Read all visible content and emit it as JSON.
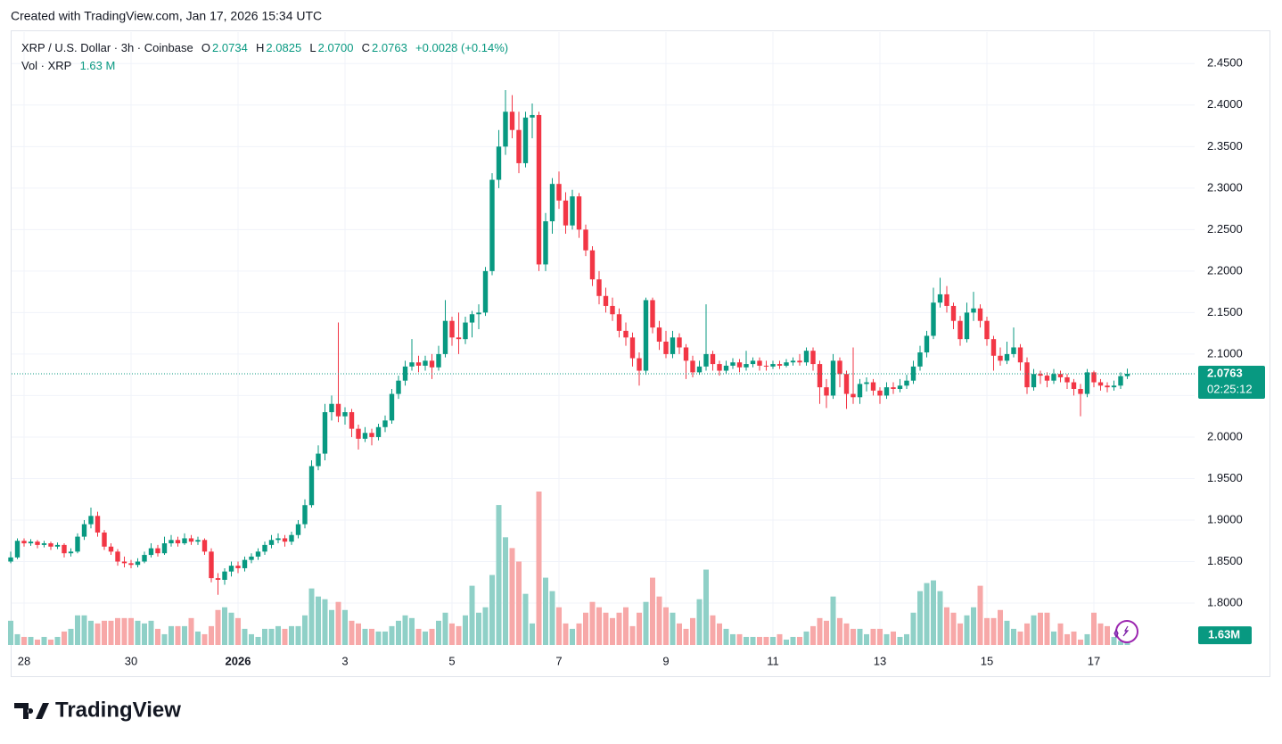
{
  "chart_data": {
    "type": "candlestick",
    "watermark": "Created with TradingView.com, Jan 17, 2026 15:34 UTC",
    "title": "XRP / U.S. Dollar · 3h · Coinbase",
    "legend": {
      "open_key": "O",
      "open": "2.0734",
      "high_key": "H",
      "high": "2.0825",
      "low_key": "L",
      "low": "2.0700",
      "close_key": "C",
      "close": "2.0763",
      "change": "+0.0028 (+0.14%)",
      "volume_key": "Vol · XRP",
      "volume": "1.63 M"
    },
    "price_tag": "2.0763",
    "countdown": "02:25:12",
    "volume_tag": "1.63M",
    "brand": "TradingView",
    "up_color": "#089981",
    "down_color": "#f23645",
    "volume_up_color": "#8fd0c7",
    "volume_down_color": "#f7a8a8",
    "grid": true,
    "ylim": [
      1.7495,
      2.489
    ],
    "yticks": [
      {
        "value": 1.8,
        "label": "1.8000"
      },
      {
        "value": 1.85,
        "label": "1.8500"
      },
      {
        "value": 1.9,
        "label": "1.9000"
      },
      {
        "value": 1.95,
        "label": "1.9500"
      },
      {
        "value": 2.0,
        "label": "2.0000"
      },
      {
        "value": 2.05,
        "label": "2.0500"
      },
      {
        "value": 2.1,
        "label": "2.1000"
      },
      {
        "value": 2.15,
        "label": "2.1500"
      },
      {
        "value": 2.2,
        "label": "2.2000"
      },
      {
        "value": 2.25,
        "label": "2.2500"
      },
      {
        "value": 2.3,
        "label": "2.3000"
      },
      {
        "value": 2.35,
        "label": "2.3500"
      },
      {
        "value": 2.4,
        "label": "2.4000"
      },
      {
        "value": 2.45,
        "label": "2.4500"
      }
    ],
    "categories": [
      null,
      null,
      "28",
      null,
      null,
      null,
      null,
      null,
      null,
      null,
      null,
      null,
      null,
      null,
      null,
      null,
      null,
      null,
      "30",
      null,
      null,
      null,
      null,
      null,
      null,
      null,
      null,
      null,
      null,
      null,
      null,
      null,
      null,
      null,
      "2026",
      null,
      null,
      null,
      null,
      null,
      null,
      null,
      null,
      null,
      null,
      null,
      null,
      null,
      null,
      null,
      "3",
      null,
      null,
      null,
      null,
      null,
      null,
      null,
      null,
      null,
      null,
      null,
      null,
      null,
      null,
      null,
      "5",
      null,
      null,
      null,
      null,
      null,
      null,
      null,
      null,
      null,
      null,
      null,
      null,
      null,
      null,
      null,
      "7",
      null,
      null,
      null,
      null,
      null,
      null,
      null,
      null,
      null,
      null,
      null,
      null,
      null,
      null,
      null,
      "9",
      null,
      null,
      null,
      null,
      null,
      null,
      null,
      null,
      null,
      null,
      null,
      null,
      null,
      null,
      null,
      "11",
      null,
      null,
      null,
      null,
      null,
      null,
      null,
      null,
      null,
      null,
      null,
      null,
      null,
      null,
      null,
      "13",
      null,
      null,
      null,
      null,
      null,
      null,
      null,
      null,
      null,
      null,
      null,
      null,
      null,
      null,
      null,
      "15",
      null,
      null,
      null,
      null,
      null,
      null,
      null,
      null,
      null,
      null,
      null,
      null,
      null,
      null,
      null,
      "17",
      null,
      null,
      null,
      null,
      null
    ],
    "ohlc": [
      [
        1.85,
        1.862,
        1.848,
        1.855
      ],
      [
        1.855,
        1.878,
        1.853,
        1.875
      ],
      [
        1.875,
        1.878,
        1.868,
        1.872
      ],
      [
        1.872,
        1.877,
        1.869,
        1.874
      ],
      [
        1.874,
        1.876,
        1.866,
        1.87
      ],
      [
        1.87,
        1.875,
        1.867,
        1.872
      ],
      [
        1.872,
        1.874,
        1.864,
        1.868
      ],
      [
        1.868,
        1.873,
        1.865,
        1.87
      ],
      [
        1.87,
        1.872,
        1.855,
        1.86
      ],
      [
        1.86,
        1.866,
        1.856,
        1.862
      ],
      [
        1.862,
        1.884,
        1.86,
        1.88
      ],
      [
        1.88,
        1.9,
        1.876,
        1.895
      ],
      [
        1.895,
        1.915,
        1.89,
        1.905
      ],
      [
        1.905,
        1.91,
        1.88,
        1.885
      ],
      [
        1.885,
        1.888,
        1.864,
        1.868
      ],
      [
        1.868,
        1.872,
        1.858,
        1.862
      ],
      [
        1.862,
        1.865,
        1.845,
        1.85
      ],
      [
        1.85,
        1.856,
        1.843,
        1.848
      ],
      [
        1.848,
        1.852,
        1.842,
        1.846
      ],
      [
        1.846,
        1.854,
        1.843,
        1.85
      ],
      [
        1.85,
        1.862,
        1.848,
        1.858
      ],
      [
        1.858,
        1.872,
        1.855,
        1.866
      ],
      [
        1.866,
        1.87,
        1.856,
        1.86
      ],
      [
        1.86,
        1.88,
        1.858,
        1.872
      ],
      [
        1.872,
        1.882,
        1.868,
        1.876
      ],
      [
        1.876,
        1.88,
        1.868,
        1.872
      ],
      [
        1.872,
        1.884,
        1.87,
        1.878
      ],
      [
        1.878,
        1.882,
        1.87,
        1.874
      ],
      [
        1.874,
        1.88,
        1.87,
        1.876
      ],
      [
        1.876,
        1.878,
        1.858,
        1.862
      ],
      [
        1.862,
        1.866,
        1.825,
        1.83
      ],
      [
        1.83,
        1.836,
        1.81,
        1.828
      ],
      [
        1.828,
        1.842,
        1.822,
        1.838
      ],
      [
        1.838,
        1.85,
        1.832,
        1.845
      ],
      [
        1.845,
        1.85,
        1.836,
        1.842
      ],
      [
        1.842,
        1.856,
        1.838,
        1.852
      ],
      [
        1.852,
        1.86,
        1.848,
        1.856
      ],
      [
        1.856,
        1.866,
        1.852,
        1.862
      ],
      [
        1.862,
        1.874,
        1.858,
        1.87
      ],
      [
        1.87,
        1.882,
        1.866,
        1.876
      ],
      [
        1.876,
        1.884,
        1.872,
        1.878
      ],
      [
        1.878,
        1.882,
        1.868,
        1.874
      ],
      [
        1.874,
        1.886,
        1.87,
        1.882
      ],
      [
        1.882,
        1.9,
        1.878,
        1.895
      ],
      [
        1.895,
        1.925,
        1.89,
        1.918
      ],
      [
        1.918,
        1.972,
        1.915,
        1.965
      ],
      [
        1.965,
        1.99,
        1.96,
        1.98
      ],
      [
        1.98,
        2.04,
        1.972,
        2.03
      ],
      [
        2.03,
        2.05,
        2.02,
        2.04
      ],
      [
        2.04,
        2.138,
        2.018,
        2.025
      ],
      [
        2.025,
        2.036,
        2.015,
        2.03
      ],
      [
        2.03,
        2.034,
        2.0,
        2.01
      ],
      [
        2.01,
        2.015,
        1.985,
        1.998
      ],
      [
        1.998,
        2.012,
        1.994,
        2.005
      ],
      [
        2.005,
        2.01,
        1.99,
        2.0
      ],
      [
        2.0,
        2.016,
        1.996,
        2.012
      ],
      [
        2.012,
        2.026,
        2.006,
        2.02
      ],
      [
        2.02,
        2.058,
        2.016,
        2.052
      ],
      [
        2.052,
        2.074,
        2.046,
        2.068
      ],
      [
        2.068,
        2.092,
        2.062,
        2.085
      ],
      [
        2.085,
        2.118,
        2.08,
        2.09
      ],
      [
        2.09,
        2.098,
        2.078,
        2.086
      ],
      [
        2.086,
        2.098,
        2.08,
        2.092
      ],
      [
        2.092,
        2.1,
        2.07,
        2.084
      ],
      [
        2.084,
        2.11,
        2.08,
        2.1
      ],
      [
        2.1,
        2.165,
        2.096,
        2.14
      ],
      [
        2.14,
        2.145,
        2.11,
        2.12
      ],
      [
        2.12,
        2.15,
        2.1,
        2.118
      ],
      [
        2.118,
        2.145,
        2.112,
        2.138
      ],
      [
        2.138,
        2.152,
        2.12,
        2.148
      ],
      [
        2.148,
        2.16,
        2.13,
        2.15
      ],
      [
        2.15,
        2.205,
        2.146,
        2.2
      ],
      [
        2.2,
        2.318,
        2.195,
        2.31
      ],
      [
        2.31,
        2.37,
        2.3,
        2.35
      ],
      [
        2.35,
        2.418,
        2.34,
        2.392
      ],
      [
        2.392,
        2.412,
        2.36,
        2.37
      ],
      [
        2.37,
        2.392,
        2.318,
        2.33
      ],
      [
        2.33,
        2.392,
        2.325,
        2.385
      ],
      [
        2.385,
        2.402,
        2.36,
        2.388
      ],
      [
        2.388,
        2.392,
        2.2,
        2.208
      ],
      [
        2.208,
        2.27,
        2.2,
        2.26
      ],
      [
        2.26,
        2.312,
        2.245,
        2.305
      ],
      [
        2.305,
        2.32,
        2.275,
        2.285
      ],
      [
        2.285,
        2.295,
        2.245,
        2.255
      ],
      [
        2.255,
        2.298,
        2.25,
        2.29
      ],
      [
        2.29,
        2.294,
        2.24,
        2.25
      ],
      [
        2.25,
        2.256,
        2.218,
        2.225
      ],
      [
        2.225,
        2.23,
        2.182,
        2.19
      ],
      [
        2.19,
        2.2,
        2.16,
        2.17
      ],
      [
        2.17,
        2.18,
        2.15,
        2.158
      ],
      [
        2.158,
        2.168,
        2.14,
        2.148
      ],
      [
        2.148,
        2.155,
        2.12,
        2.128
      ],
      [
        2.128,
        2.138,
        2.11,
        2.12
      ],
      [
        2.12,
        2.126,
        2.085,
        2.095
      ],
      [
        2.095,
        2.102,
        2.062,
        2.08
      ],
      [
        2.08,
        2.168,
        2.075,
        2.165
      ],
      [
        2.165,
        2.168,
        2.125,
        2.132
      ],
      [
        2.132,
        2.14,
        2.105,
        2.115
      ],
      [
        2.115,
        2.128,
        2.095,
        2.1
      ],
      [
        2.1,
        2.128,
        2.095,
        2.12
      ],
      [
        2.12,
        2.125,
        2.1,
        2.108
      ],
      [
        2.108,
        2.112,
        2.07,
        2.092
      ],
      [
        2.092,
        2.098,
        2.072,
        2.078
      ],
      [
        2.078,
        2.092,
        2.075,
        2.085
      ],
      [
        2.085,
        2.16,
        2.08,
        2.1
      ],
      [
        2.1,
        2.104,
        2.08,
        2.088
      ],
      [
        2.088,
        2.092,
        2.074,
        2.08
      ],
      [
        2.08,
        2.092,
        2.076,
        2.086
      ],
      [
        2.086,
        2.095,
        2.082,
        2.09
      ],
      [
        2.09,
        2.094,
        2.078,
        2.084
      ],
      [
        2.084,
        2.104,
        2.08,
        2.088
      ],
      [
        2.088,
        2.096,
        2.084,
        2.092
      ],
      [
        2.092,
        2.096,
        2.08,
        2.086
      ],
      [
        2.086,
        2.092,
        2.08,
        2.085
      ],
      [
        2.085,
        2.092,
        2.082,
        2.088
      ],
      [
        2.088,
        2.092,
        2.082,
        2.086
      ],
      [
        2.086,
        2.094,
        2.084,
        2.09
      ],
      [
        2.09,
        2.096,
        2.086,
        2.092
      ],
      [
        2.092,
        2.1,
        2.086,
        2.09
      ],
      [
        2.09,
        2.108,
        2.086,
        2.104
      ],
      [
        2.104,
        2.108,
        2.08,
        2.088
      ],
      [
        2.088,
        2.092,
        2.04,
        2.06
      ],
      [
        2.06,
        2.07,
        2.035,
        2.05
      ],
      [
        2.05,
        2.1,
        2.046,
        2.092
      ],
      [
        2.092,
        2.096,
        2.06,
        2.076
      ],
      [
        2.076,
        2.08,
        2.034,
        2.052
      ],
      [
        2.052,
        2.108,
        2.04,
        2.048
      ],
      [
        2.048,
        2.07,
        2.04,
        2.064
      ],
      [
        2.064,
        2.072,
        2.055,
        2.066
      ],
      [
        2.066,
        2.07,
        2.05,
        2.056
      ],
      [
        2.056,
        2.06,
        2.04,
        2.05
      ],
      [
        2.05,
        2.066,
        2.046,
        2.06
      ],
      [
        2.06,
        2.066,
        2.052,
        2.058
      ],
      [
        2.058,
        2.07,
        2.054,
        2.062
      ],
      [
        2.062,
        2.075,
        2.058,
        2.068
      ],
      [
        2.068,
        2.092,
        2.064,
        2.085
      ],
      [
        2.085,
        2.11,
        2.08,
        2.102
      ],
      [
        2.102,
        2.128,
        2.096,
        2.122
      ],
      [
        2.122,
        2.18,
        2.118,
        2.162
      ],
      [
        2.162,
        2.192,
        2.156,
        2.172
      ],
      [
        2.172,
        2.182,
        2.15,
        2.158
      ],
      [
        2.158,
        2.162,
        2.13,
        2.14
      ],
      [
        2.14,
        2.146,
        2.11,
        2.118
      ],
      [
        2.118,
        2.162,
        2.114,
        2.15
      ],
      [
        2.15,
        2.175,
        2.14,
        2.155
      ],
      [
        2.155,
        2.16,
        2.132,
        2.14
      ],
      [
        2.14,
        2.145,
        2.11,
        2.118
      ],
      [
        2.118,
        2.122,
        2.08,
        2.098
      ],
      [
        2.098,
        2.108,
        2.086,
        2.092
      ],
      [
        2.092,
        2.115,
        2.088,
        2.1
      ],
      [
        2.1,
        2.132,
        2.096,
        2.108
      ],
      [
        2.108,
        2.112,
        2.08,
        2.09
      ],
      [
        2.09,
        2.096,
        2.052,
        2.06
      ],
      [
        2.06,
        2.082,
        2.056,
        2.076
      ],
      [
        2.076,
        2.08,
        2.064,
        2.074
      ],
      [
        2.074,
        2.078,
        2.06,
        2.068
      ],
      [
        2.068,
        2.082,
        2.064,
        2.076
      ],
      [
        2.076,
        2.08,
        2.066,
        2.072
      ],
      [
        2.072,
        2.076,
        2.058,
        2.066
      ],
      [
        2.066,
        2.07,
        2.05,
        2.058
      ],
      [
        2.058,
        2.064,
        2.025,
        2.052
      ],
      [
        2.052,
        2.082,
        2.048,
        2.078
      ],
      [
        2.078,
        2.08,
        2.06,
        2.066
      ],
      [
        2.066,
        2.07,
        2.056,
        2.062
      ],
      [
        2.062,
        2.066,
        2.054,
        2.06
      ],
      [
        2.06,
        2.068,
        2.056,
        2.062
      ],
      [
        2.062,
        2.078,
        2.058,
        2.0734
      ],
      [
        2.0734,
        2.0825,
        2.07,
        2.0763
      ]
    ],
    "volume": [
      9,
      4,
      3,
      3,
      2,
      3,
      2,
      3,
      5,
      6,
      11,
      11,
      9,
      8,
      9,
      9,
      10,
      10,
      10,
      9,
      8,
      9,
      6,
      4,
      7,
      7,
      7,
      10,
      5,
      4,
      7,
      13,
      14,
      12,
      10,
      6,
      4,
      3,
      6,
      6,
      7,
      6,
      7,
      7,
      11,
      21,
      18,
      17,
      13,
      16,
      13,
      9,
      8,
      6,
      6,
      5,
      5,
      7,
      9,
      11,
      10,
      6,
      5,
      6,
      9,
      12,
      8,
      7,
      11,
      22,
      12,
      14,
      26,
      52,
      40,
      36,
      31,
      19,
      8,
      57,
      25,
      20,
      14,
      8,
      6,
      8,
      12,
      16,
      14,
      12,
      10,
      12,
      14,
      7,
      12,
      16,
      25,
      18,
      14,
      12,
      8,
      6,
      10,
      17,
      28,
      11,
      8,
      6,
      4,
      4,
      3,
      3,
      3,
      3,
      3,
      4,
      2,
      3,
      3,
      5,
      7,
      10,
      9,
      18,
      10,
      8,
      6,
      6,
      4,
      6,
      6,
      4,
      5,
      3,
      4,
      12,
      20,
      23,
      24,
      20,
      14,
      12,
      8,
      11,
      14,
      22,
      10,
      10,
      13,
      9,
      6,
      5,
      8,
      11,
      12,
      12,
      5,
      8,
      4,
      5,
      2,
      4,
      12,
      8,
      7,
      3,
      1.5,
      1.63
    ]
  }
}
